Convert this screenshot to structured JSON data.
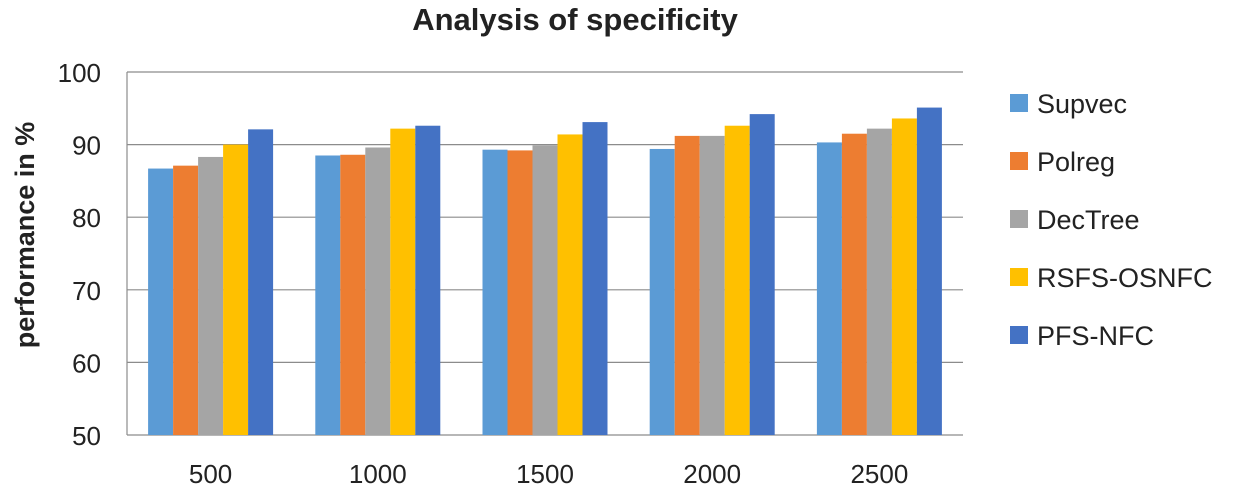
{
  "chart_data": {
    "type": "bar",
    "title": "Analysis of specificity",
    "xlabel": "",
    "ylabel": "performance in %",
    "ylim": [
      50,
      100
    ],
    "yticks": [
      50,
      60,
      70,
      80,
      90,
      100
    ],
    "grid": true,
    "legend_position": "right",
    "categories": [
      "500",
      "1000",
      "1500",
      "2000",
      "2500"
    ],
    "series": [
      {
        "name": "Supvec",
        "color": "#5B9BD5",
        "values": [
          86.7,
          88.5,
          89.3,
          89.4,
          90.3
        ]
      },
      {
        "name": "Polreg",
        "color": "#ED7D31",
        "values": [
          87.1,
          88.6,
          89.2,
          91.2,
          91.5
        ]
      },
      {
        "name": "DecTree",
        "color": "#A5A5A5",
        "values": [
          88.3,
          89.6,
          89.9,
          91.2,
          92.2
        ]
      },
      {
        "name": "RSFS-OSNFC",
        "color": "#FFC000",
        "values": [
          90.0,
          92.2,
          91.4,
          92.6,
          93.6
        ]
      },
      {
        "name": "PFS-NFC",
        "color": "#4472C4",
        "values": [
          92.1,
          92.6,
          93.1,
          94.2,
          95.1
        ]
      }
    ]
  }
}
